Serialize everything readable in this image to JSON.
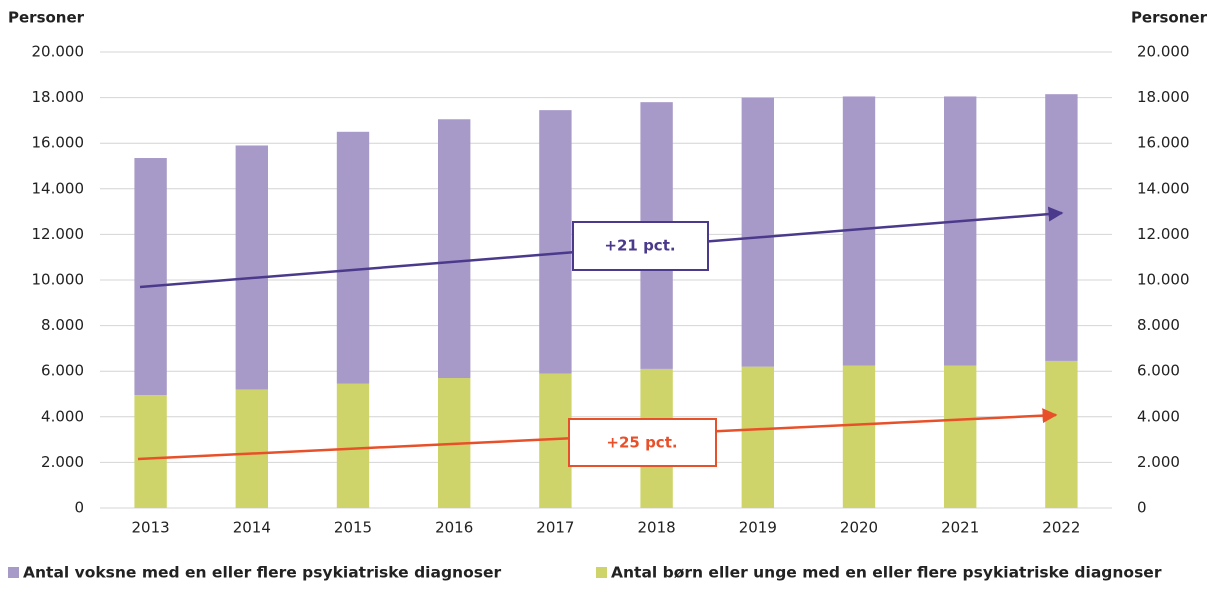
{
  "chart_data": {
    "type": "stacked_bar",
    "ylabel": "Personer",
    "y2label": "Personer",
    "categories": [
      "2013",
      "2014",
      "2015",
      "2016",
      "2017",
      "2018",
      "2019",
      "2020",
      "2021",
      "2022"
    ],
    "series": [
      {
        "name": "Antal voksne med en eller flere psykiatriske diagnoser",
        "color": "#a89ac8",
        "values": [
          10400,
          10700,
          11050,
          11350,
          11550,
          11700,
          11800,
          11800,
          11800,
          11700
        ]
      },
      {
        "name": "Antal børn eller unge med en eller flere psykiatriske diagnoser",
        "color": "#cfd46a",
        "values": [
          4950,
          5200,
          5450,
          5700,
          5900,
          6100,
          6200,
          6250,
          6250,
          6450
        ]
      }
    ],
    "ylim": [
      0,
      20000
    ],
    "yticks": [
      0,
      {
        "value": 2000,
        "label": "2.000"
      },
      {
        "value": 4000,
        "label": "4.000"
      },
      {
        "value": 6000,
        "label": "6.000"
      },
      {
        "value": 8000,
        "label": "8.000"
      },
      {
        "value": 10000,
        "label": "10.000"
      },
      {
        "value": 12000,
        "label": "12.000"
      },
      {
        "value": 14000,
        "label": "14.000"
      },
      {
        "value": 16000,
        "label": "16.000"
      },
      {
        "value": 18000,
        "label": "18.000"
      },
      {
        "value": 20000,
        "label": "20.000"
      }
    ],
    "y2lim": [
      0,
      20000
    ],
    "y2ticks": [
      0,
      {
        "value": 2000,
        "label": "2.000"
      },
      {
        "value": 4000,
        "label": "4.000"
      },
      {
        "value": 6000,
        "label": "6.000"
      },
      {
        "value": 8000,
        "label": "8.000"
      },
      {
        "value": 10000,
        "label": "10.000"
      },
      {
        "value": 12000,
        "label": "12.000"
      },
      {
        "value": 14000,
        "label": "14.000"
      },
      {
        "value": 16000,
        "label": "16.000"
      },
      {
        "value": 18000,
        "label": "18.000"
      },
      {
        "value": 20000,
        "label": "20.000"
      }
    ],
    "grid": true,
    "annotations": [
      "+21 pct.",
      "+25 pct."
    ]
  }
}
